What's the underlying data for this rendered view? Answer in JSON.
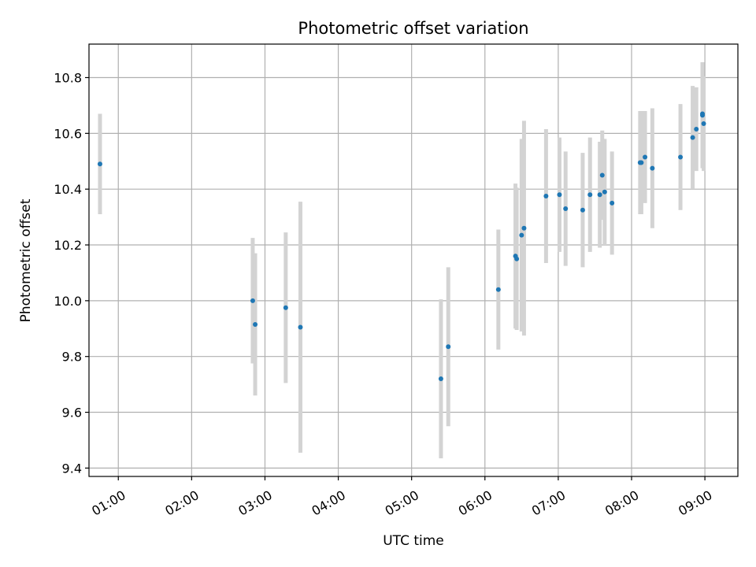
{
  "chart_data": {
    "type": "scatter",
    "title": "Photometric offset variation",
    "xlabel": "UTC time",
    "ylabel": "Photometric offset",
    "grid": true,
    "legend": "none",
    "x_ticks": [
      "01:00",
      "02:00",
      "03:00",
      "04:00",
      "05:00",
      "06:00",
      "07:00",
      "08:00",
      "09:00"
    ],
    "y_ticks": [
      "9.4",
      "9.6",
      "9.8",
      "10.0",
      "10.2",
      "10.4",
      "10.6",
      "10.8"
    ],
    "xlim": [
      "00:36",
      "09:27"
    ],
    "ylim": [
      9.37,
      10.92
    ],
    "colors": {
      "point": "#1f77b4",
      "errorbar": "#d3d3d3",
      "grid": "#b0b0b0"
    },
    "series": [
      {
        "points": [
          {
            "x": "00:45",
            "y": 10.49,
            "err": 0.18
          },
          {
            "x": "02:50",
            "y": 10.0,
            "err": 0.225
          },
          {
            "x": "02:52",
            "y": 9.915,
            "err": 0.255
          },
          {
            "x": "03:17",
            "y": 9.975,
            "err": 0.27
          },
          {
            "x": "03:29",
            "y": 9.905,
            "err": 0.45
          },
          {
            "x": "05:24",
            "y": 9.72,
            "err": 0.285
          },
          {
            "x": "05:30",
            "y": 9.835,
            "err": 0.285
          },
          {
            "x": "06:11",
            "y": 10.04,
            "err": 0.215
          },
          {
            "x": "06:25",
            "y": 10.16,
            "err": 0.26
          },
          {
            "x": "06:26",
            "y": 10.15,
            "err": 0.255
          },
          {
            "x": "06:30",
            "y": 10.235,
            "err": 0.345
          },
          {
            "x": "06:32",
            "y": 10.26,
            "err": 0.385
          },
          {
            "x": "06:50",
            "y": 10.375,
            "err": 0.24
          },
          {
            "x": "07:01",
            "y": 10.38,
            "err": 0.205
          },
          {
            "x": "07:06",
            "y": 10.33,
            "err": 0.205
          },
          {
            "x": "07:20",
            "y": 10.325,
            "err": 0.205
          },
          {
            "x": "07:26",
            "y": 10.38,
            "err": 0.205
          },
          {
            "x": "07:34",
            "y": 10.38,
            "err": 0.19
          },
          {
            "x": "07:36",
            "y": 10.45,
            "err": 0.16
          },
          {
            "x": "07:38",
            "y": 10.39,
            "err": 0.19
          },
          {
            "x": "07:44",
            "y": 10.35,
            "err": 0.185
          },
          {
            "x": "08:07",
            "y": 10.495,
            "err": 0.185
          },
          {
            "x": "08:08",
            "y": 10.495,
            "err": 0.185
          },
          {
            "x": "08:11",
            "y": 10.515,
            "err": 0.165
          },
          {
            "x": "08:17",
            "y": 10.475,
            "err": 0.215
          },
          {
            "x": "08:40",
            "y": 10.515,
            "err": 0.19
          },
          {
            "x": "08:50",
            "y": 10.585,
            "err": 0.185
          },
          {
            "x": "08:53",
            "y": 10.615,
            "err": 0.15
          },
          {
            "x": "08:58",
            "y": 10.67,
            "err": 0.18
          },
          {
            "x": "08:58",
            "y": 10.665,
            "err": 0.19
          },
          {
            "x": "08:59",
            "y": 10.635,
            "err": 0.17
          }
        ]
      }
    ]
  }
}
